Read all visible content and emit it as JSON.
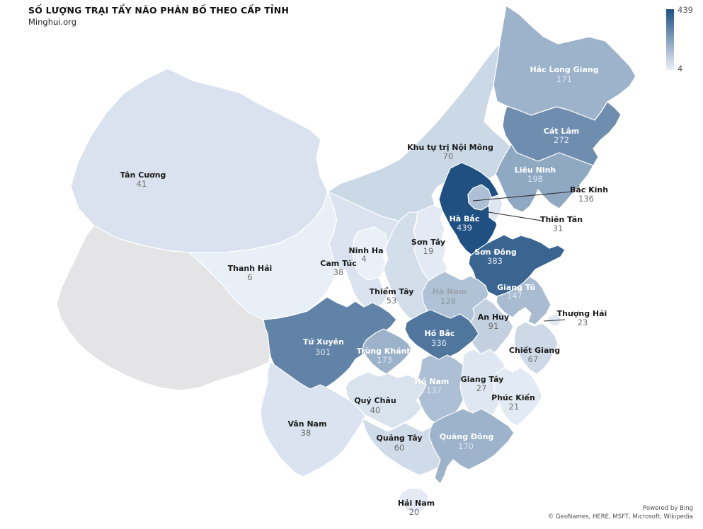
{
  "title": "SỐ LƯỢNG TRẠI TẨY NÃO PHÂN BỐ THEO CẤP TỈNH",
  "subtitle": "Minghui.org",
  "legend": {
    "max_label": "439",
    "min_label": "4"
  },
  "attribution": {
    "line1": "Powered by Bing",
    "line2": "© GeoNames, HERE, MSFT, Microsoft, Wikipedia"
  },
  "colors": {
    "scale_min": "#EAF0F8",
    "scale_max": "#205082",
    "no_data": "#E4E4E6",
    "border": "#FFFFFF",
    "callout_line": "#2d2d2d",
    "label_dark": "#1a1a1a",
    "label_dark_value": "#6f6f6f",
    "label_light": "#ffffff",
    "label_light_value": "#dde5f0",
    "label_muted": "#9aa1ab",
    "label_muted_value": "#8d949e"
  },
  "chart_data": {
    "type": "choropleth",
    "title": "SỐ LƯỢNG TRẠI TẨY NÃO PHÂN BỐ THEO CẤP TỈNH",
    "source": "Minghui.org",
    "value_range": [
      4,
      439
    ],
    "legend_position": "top-right",
    "regions": [
      {
        "id": "tibet",
        "name": "",
        "value": null,
        "label": "none"
      },
      {
        "id": "xinjiang",
        "name": "Tân Cương",
        "value": 41,
        "label": "dark"
      },
      {
        "id": "qinghai",
        "name": "Thanh Hải",
        "value": 6,
        "label": "dark"
      },
      {
        "id": "gansu",
        "name": "Cam Túc",
        "value": 38,
        "label": "dark"
      },
      {
        "id": "inner-mongolia",
        "name": "Khu tự trị Nội Mông",
        "value": 70,
        "label": "dark"
      },
      {
        "id": "ningxia",
        "name": "Ninh Ha",
        "value": 4,
        "label": "dark"
      },
      {
        "id": "heilongjiang",
        "name": "Hắc Long Giang",
        "value": 171,
        "label": "light"
      },
      {
        "id": "jilin",
        "name": "Cát Lâm",
        "value": 272,
        "label": "light"
      },
      {
        "id": "liaoning",
        "name": "Liêu Ninh",
        "value": 198,
        "label": "light"
      },
      {
        "id": "shanxi",
        "name": "Sơn Tây",
        "value": 19,
        "label": "dark"
      },
      {
        "id": "shaanxi",
        "name": "Thiểm Tây",
        "value": 53,
        "label": "dark"
      },
      {
        "id": "hebei",
        "name": "Hà Bắc",
        "value": 439,
        "label": "light"
      },
      {
        "id": "shandong",
        "name": "Sơn Đông",
        "value": 383,
        "label": "light"
      },
      {
        "id": "henan",
        "name": "Hà Nam",
        "value": 128,
        "label": "muted"
      },
      {
        "id": "jiangsu",
        "name": "Giang Tô",
        "value": 147,
        "label": "light"
      },
      {
        "id": "anhui",
        "name": "An Huy",
        "value": 91,
        "label": "dark"
      },
      {
        "id": "hubei",
        "name": "Hồ Bắc",
        "value": 336,
        "label": "light"
      },
      {
        "id": "sichuan",
        "name": "Tứ Xuyên",
        "value": 301,
        "label": "light"
      },
      {
        "id": "chongqing",
        "name": "Trùng Khánh",
        "value": 173,
        "label": "light"
      },
      {
        "id": "zhejiang",
        "name": "Chiết Giang",
        "value": 67,
        "label": "dark"
      },
      {
        "id": "hunan",
        "name": "Hồ Nam",
        "value": 137,
        "label": "light"
      },
      {
        "id": "jiangxi",
        "name": "Giang Tây",
        "value": 27,
        "label": "dark"
      },
      {
        "id": "fujian",
        "name": "Phúc Kiến",
        "value": 21,
        "label": "dark"
      },
      {
        "id": "guizhou",
        "name": "Quý Châu",
        "value": 40,
        "label": "dark"
      },
      {
        "id": "yunnan",
        "name": "Vân Nam",
        "value": 38,
        "label": "dark"
      },
      {
        "id": "guangxi",
        "name": "Quảng Tây",
        "value": 60,
        "label": "dark"
      },
      {
        "id": "guangdong",
        "name": "Quảng Đông",
        "value": 170,
        "label": "light"
      },
      {
        "id": "hainan",
        "name": "Hải Nam",
        "value": 20,
        "label": "dark"
      },
      {
        "id": "shanghai",
        "name": "Thượng Hải",
        "value": 23,
        "label": "dark"
      },
      {
        "id": "beijing",
        "name": "Bắc Kinh",
        "value": 136,
        "label": "dark"
      },
      {
        "id": "tianjin",
        "name": "Thiên Tân",
        "value": 31,
        "label": "dark"
      }
    ]
  }
}
